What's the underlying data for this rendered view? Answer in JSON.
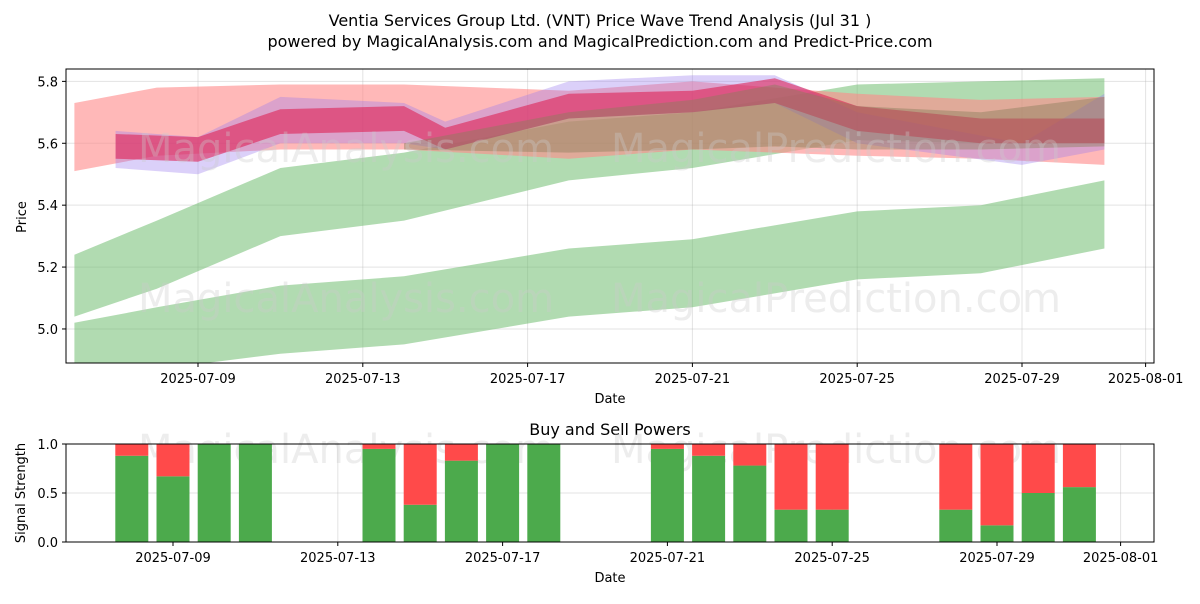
{
  "title_line1": "Ventia Services Group Ltd. (VNT) Price Wave Trend Analysis (Jul 31 )",
  "title_line2": "powered by MagicalAnalysis.com and MagicalPrediction.com and Predict-Price.com",
  "watermarks": [
    "MagicalAnalysis.com",
    "MagicalPrediction.com"
  ],
  "chart_data": [
    {
      "type": "area",
      "title": "",
      "xlabel": "Date",
      "ylabel": "Price",
      "x_ticks": [
        "2025-07-09",
        "2025-07-13",
        "2025-07-17",
        "2025-07-21",
        "2025-07-25",
        "2025-07-29",
        "2025-08-01"
      ],
      "y_ticks": [
        "5.0",
        "5.2",
        "5.4",
        "5.6",
        "5.8"
      ],
      "ylim": [
        4.89,
        5.84
      ],
      "grid": true,
      "bands": [
        {
          "color": "#6aba6a",
          "opacity": 0.52,
          "x": [
            "2025-07-06",
            "2025-07-08",
            "2025-07-11",
            "2025-07-14",
            "2025-07-18",
            "2025-07-21",
            "2025-07-25",
            "2025-07-28",
            "2025-07-31"
          ],
          "upper": [
            5.24,
            5.35,
            5.52,
            5.57,
            5.67,
            5.7,
            5.79,
            5.8,
            5.81
          ],
          "lower": [
            5.04,
            5.13,
            5.3,
            5.35,
            5.48,
            5.52,
            5.61,
            5.6,
            5.6
          ]
        },
        {
          "color": "#6aba6a",
          "opacity": 0.52,
          "x": [
            "2025-07-06",
            "2025-07-08",
            "2025-07-11",
            "2025-07-14",
            "2025-07-18",
            "2025-07-21",
            "2025-07-25",
            "2025-07-28",
            "2025-07-31"
          ],
          "upper": [
            5.02,
            5.07,
            5.14,
            5.17,
            5.26,
            5.29,
            5.38,
            5.4,
            5.48
          ],
          "lower": [
            4.83,
            4.87,
            4.92,
            4.95,
            5.04,
            5.07,
            5.16,
            5.18,
            5.26
          ]
        },
        {
          "color": "#ff8888",
          "opacity": 0.6,
          "x": [
            "2025-07-06",
            "2025-07-08",
            "2025-07-11",
            "2025-07-14",
            "2025-07-18",
            "2025-07-21",
            "2025-07-25",
            "2025-07-28",
            "2025-07-31"
          ],
          "upper": [
            5.73,
            5.78,
            5.79,
            5.79,
            5.77,
            5.8,
            5.76,
            5.74,
            5.75
          ],
          "lower": [
            5.51,
            5.56,
            5.58,
            5.58,
            5.55,
            5.58,
            5.56,
            5.55,
            5.53
          ]
        },
        {
          "color": "#9977ee",
          "opacity": 0.35,
          "x": [
            "2025-07-07",
            "2025-07-09",
            "2025-07-11",
            "2025-07-14",
            "2025-07-15",
            "2025-07-18",
            "2025-07-21",
            "2025-07-23",
            "2025-07-25",
            "2025-07-29",
            "2025-07-31"
          ],
          "upper": [
            5.64,
            5.62,
            5.75,
            5.73,
            5.67,
            5.8,
            5.82,
            5.82,
            5.7,
            5.6,
            5.76
          ],
          "lower": [
            5.52,
            5.5,
            5.6,
            5.6,
            5.58,
            5.68,
            5.7,
            5.73,
            5.6,
            5.53,
            5.58
          ]
        },
        {
          "color": "#dd2255",
          "opacity": 0.6,
          "x": [
            "2025-07-07",
            "2025-07-09",
            "2025-07-11",
            "2025-07-14",
            "2025-07-15",
            "2025-07-18",
            "2025-07-21",
            "2025-07-23",
            "2025-07-25",
            "2025-07-28",
            "2025-07-31"
          ],
          "upper": [
            5.63,
            5.62,
            5.71,
            5.72,
            5.65,
            5.76,
            5.77,
            5.81,
            5.72,
            5.68,
            5.68
          ],
          "lower": [
            5.55,
            5.54,
            5.63,
            5.64,
            5.58,
            5.68,
            5.7,
            5.73,
            5.64,
            5.6,
            5.6
          ]
        },
        {
          "color": "#8a7f5a",
          "opacity": 0.45,
          "x": [
            "2025-07-14",
            "2025-07-18",
            "2025-07-21",
            "2025-07-23",
            "2025-07-25",
            "2025-07-28",
            "2025-07-31"
          ],
          "upper": [
            5.6,
            5.7,
            5.74,
            5.79,
            5.72,
            5.7,
            5.75
          ],
          "lower": [
            5.58,
            5.57,
            5.58,
            5.59,
            5.58,
            5.58,
            5.59
          ]
        }
      ]
    },
    {
      "type": "bar",
      "title": "Buy and Sell Powers",
      "xlabel": "Date",
      "ylabel": "Signal Strength",
      "x_ticks": [
        "2025-07-09",
        "2025-07-13",
        "2025-07-17",
        "2025-07-21",
        "2025-07-25",
        "2025-07-29",
        "2025-08-01"
      ],
      "y_ticks": [
        "0.0",
        "0.5",
        "1.0"
      ],
      "ylim": [
        0,
        1
      ],
      "buy_color": "#4caa4c",
      "sell_color": "#ff4a4a",
      "categories": [
        "2025-07-08",
        "2025-07-09",
        "2025-07-10",
        "2025-07-11",
        "2025-07-14",
        "2025-07-15",
        "2025-07-16",
        "2025-07-17",
        "2025-07-18",
        "2025-07-21",
        "2025-07-22",
        "2025-07-23",
        "2025-07-24",
        "2025-07-25",
        "2025-07-28",
        "2025-07-29",
        "2025-07-30",
        "2025-07-31"
      ],
      "series": [
        {
          "name": "",
          "values": [
            0.88,
            0.67,
            1.0,
            1.0,
            0.95,
            0.38,
            0.83,
            1.0,
            1.0,
            0.95,
            0.88,
            0.78,
            0.33,
            0.33,
            0.33,
            0.17,
            0.5,
            0.56
          ]
        },
        {
          "name": "",
          "values": [
            0.12,
            0.33,
            0.0,
            0.0,
            0.05,
            0.62,
            0.17,
            0.0,
            0.0,
            0.05,
            0.12,
            0.22,
            0.67,
            0.67,
            0.67,
            0.83,
            0.5,
            0.44
          ]
        }
      ]
    }
  ]
}
